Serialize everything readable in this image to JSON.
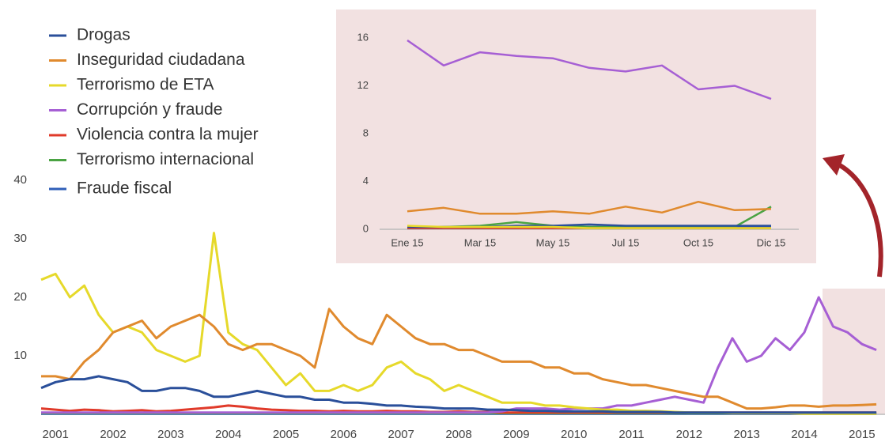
{
  "chart_data": [
    {
      "type": "line",
      "x": [
        2000.75,
        2001,
        2001.25,
        2001.5,
        2001.75,
        2002,
        2002.25,
        2002.5,
        2002.75,
        2003,
        2003.25,
        2003.5,
        2003.75,
        2004,
        2004.25,
        2004.5,
        2004.75,
        2005,
        2005.25,
        2005.5,
        2005.75,
        2006,
        2006.25,
        2006.5,
        2006.75,
        2007,
        2007.25,
        2007.5,
        2007.75,
        2008,
        2008.25,
        2008.5,
        2008.75,
        2009,
        2009.25,
        2009.5,
        2009.75,
        2010,
        2010.25,
        2010.5,
        2010.75,
        2011,
        2011.25,
        2011.5,
        2011.75,
        2012,
        2012.25,
        2012.5,
        2012.75,
        2013,
        2013.25,
        2013.5,
        2013.75,
        2014,
        2014.25,
        2014.5,
        2014.75,
        2015,
        2015.25
      ],
      "series": [
        {
          "name": "Drogas",
          "color": "#2a4f9a",
          "values": [
            4.5,
            5.5,
            6,
            6,
            6.5,
            6,
            5.5,
            4,
            4,
            4.5,
            4.5,
            4,
            3,
            3,
            3.5,
            4,
            3.5,
            3,
            3,
            2.5,
            2.5,
            2,
            2,
            1.8,
            1.5,
            1.5,
            1.3,
            1.2,
            1,
            1,
            1,
            0.8,
            0.8,
            0.7,
            0.6,
            0.6,
            0.5,
            0.5,
            0.5,
            0.5,
            0.4,
            0.4,
            0.4,
            0.4,
            0.3,
            0.3,
            0.3,
            0.3,
            0.3,
            0.3,
            0.3,
            0.3,
            0.3,
            0.3,
            0.3,
            0.3,
            0.3,
            0.3,
            0.3
          ]
        },
        {
          "name": "Inseguridad ciudadana",
          "color": "#e08a2e",
          "values": [
            6.5,
            6.5,
            6,
            9,
            11,
            14,
            15,
            16,
            13,
            15,
            16,
            17,
            15,
            12,
            11,
            12,
            12,
            11,
            10,
            8,
            18,
            15,
            13,
            12,
            17,
            15,
            13,
            12,
            12,
            11,
            11,
            10,
            9,
            9,
            9,
            8,
            8,
            7,
            7,
            6,
            5.5,
            5,
            5,
            4.5,
            4,
            3.5,
            3,
            3,
            2,
            1,
            1,
            1.2,
            1.5,
            1.5,
            1.3,
            1.5,
            1.5,
            1.6,
            1.7
          ]
        },
        {
          "name": "Terrorismo de ETA",
          "color": "#e6d92a",
          "values": [
            23,
            24,
            20,
            22,
            17,
            14,
            15,
            14,
            11,
            10,
            9,
            10,
            31,
            14,
            12,
            11,
            8,
            5,
            7,
            4,
            4,
            5,
            4,
            5,
            8,
            9,
            7,
            6,
            4,
            5,
            4,
            3,
            2,
            2,
            2,
            1.5,
            1.5,
            1.2,
            1,
            0.8,
            0.8,
            0.6,
            0.6,
            0.5,
            0.4,
            0.3,
            0.3,
            0.3,
            0.2,
            0.2,
            0.2,
            0.2,
            0.2,
            0.1,
            0.1,
            0.1,
            0.1,
            0.1,
            0.1
          ]
        },
        {
          "name": "Corrupción y fraude",
          "color": "#a65fd4",
          "values": [
            0.3,
            0.3,
            0.3,
            0.3,
            0.3,
            0.3,
            0.3,
            0.3,
            0.3,
            0.3,
            0.3,
            0.3,
            0.3,
            0.3,
            0.3,
            0.3,
            0.3,
            0.3,
            0.3,
            0.3,
            0.3,
            0.3,
            0.3,
            0.3,
            0.3,
            0.3,
            0.3,
            0.3,
            0.3,
            0.3,
            0.3,
            0.3,
            0.5,
            1,
            1,
            1,
            0.8,
            1,
            1,
            1,
            1.5,
            1.5,
            2,
            2.5,
            3,
            2.5,
            2,
            8,
            13,
            9,
            10,
            13,
            11,
            14,
            20,
            15,
            14,
            12,
            11
          ]
        },
        {
          "name": "Violencia contra la mujer",
          "color": "#e03a2a",
          "values": [
            1,
            0.8,
            0.6,
            0.8,
            0.7,
            0.5,
            0.6,
            0.7,
            0.5,
            0.6,
            0.8,
            1,
            1.2,
            1.5,
            1.3,
            1,
            0.8,
            0.7,
            0.6,
            0.6,
            0.5,
            0.6,
            0.5,
            0.5,
            0.6,
            0.5,
            0.5,
            0.4,
            0.4,
            0.5,
            0.4,
            0.4,
            0.3,
            0.3,
            0.3,
            0.3,
            0.3,
            0.3,
            0.3,
            0.3,
            0.3,
            0.3,
            0.3,
            0.3,
            0.3,
            0.3,
            0.3,
            0.3,
            0.3,
            0.3,
            0.3,
            0.3,
            0.3,
            0.3,
            0.3,
            0.3,
            0.3,
            0.3,
            0.3
          ]
        },
        {
          "name": "Terrorismo internacional",
          "color": "#4aa343",
          "values": [
            0.2,
            0.2,
            0.2,
            0.2,
            0.2,
            0.2,
            0.2,
            0.2,
            0.2,
            0.2,
            0.2,
            0.2,
            0.2,
            0.2,
            0.2,
            0.2,
            0.2,
            0.2,
            0.2,
            0.2,
            0.2,
            0.2,
            0.2,
            0.2,
            0.2,
            0.2,
            0.2,
            0.2,
            0.2,
            0.2,
            0.2,
            0.2,
            0.2,
            0.2,
            0.2,
            0.2,
            0.2,
            0.2,
            0.2,
            0.2,
            0.2,
            0.2,
            0.2,
            0.2,
            0.2,
            0.2,
            0.2,
            0.2,
            0.2,
            0.2,
            0.2,
            0.2,
            0.2,
            0.2,
            0.2,
            0.2,
            0.2,
            0.2,
            0.2
          ]
        },
        {
          "name": "Fraude fiscal",
          "color": "#2f5fb8",
          "values": [
            0.1,
            0.1,
            0.1,
            0.1,
            0.1,
            0.1,
            0.1,
            0.1,
            0.1,
            0.1,
            0.1,
            0.1,
            0.1,
            0.1,
            0.1,
            0.1,
            0.1,
            0.1,
            0.1,
            0.1,
            0.1,
            0.1,
            0.1,
            0.1,
            0.1,
            0.1,
            0.1,
            0.1,
            0.1,
            0.1,
            0.1,
            0.1,
            0.1,
            0.1,
            0.1,
            0.1,
            0.1,
            0.1,
            0.1,
            0.1,
            0.1,
            0.1,
            0.1,
            0.1,
            0.1,
            0.1,
            0.1,
            0.1,
            0.1,
            0.1,
            0.1,
            0.1,
            0.1,
            0.1,
            0.1,
            0.1,
            0.1,
            0.1,
            0.1
          ]
        }
      ],
      "xlim": [
        2000.75,
        2015.4
      ],
      "xticks": [
        2001,
        2002,
        2003,
        2004,
        2005,
        2006,
        2007,
        2008,
        2009,
        2010,
        2011,
        2012,
        2013,
        2014,
        2015
      ],
      "ylim": [
        0,
        40
      ],
      "yticks": [
        10,
        20,
        30,
        40
      ]
    },
    {
      "type": "line",
      "categories": [
        "Ene 15",
        null,
        "Mar 15",
        null,
        "May 15",
        null,
        "Jul 15",
        null,
        "Oct 15",
        null,
        "Dic 15"
      ],
      "series": [
        {
          "color": "#a65fd4",
          "values": [
            15.8,
            13.7,
            14.8,
            14.5,
            14.3,
            13.5,
            13.2,
            13.7,
            11.7,
            12,
            10.9
          ]
        },
        {
          "color": "#e08a2e",
          "values": [
            1.5,
            1.8,
            1.3,
            1.3,
            1.5,
            1.3,
            1.9,
            1.4,
            2.3,
            1.6,
            1.7
          ]
        },
        {
          "color": "#e6d92a",
          "values": [
            0.3,
            0.2,
            0.2,
            0.2,
            0.2,
            0.1,
            0.1,
            0.1,
            0.1,
            0.1,
            0.1
          ]
        },
        {
          "color": "#2a4f9a",
          "values": [
            0.2,
            0.2,
            0.2,
            0.3,
            0.3,
            0.4,
            0.3,
            0.3,
            0.3,
            0.3,
            0.3
          ]
        },
        {
          "color": "#e03a2a",
          "values": [
            0.1,
            0.1,
            0.1,
            0.1,
            0.1,
            0.1,
            0.1,
            0.1,
            0.1,
            0.1,
            0.1
          ]
        },
        {
          "color": "#4aa343",
          "values": [
            0.1,
            0.2,
            0.3,
            0.6,
            0.3,
            0.2,
            0.2,
            0.2,
            0.2,
            0.2,
            1.9
          ]
        },
        {
          "color": "#2f5fb8",
          "values": [
            0.1,
            0.1,
            0.1,
            0.1,
            0.2,
            0.2,
            0.2,
            0.2,
            0.2,
            0.2,
            0.2
          ]
        }
      ],
      "ylim": [
        0,
        16
      ],
      "yticks": [
        0,
        4,
        8,
        12,
        16
      ]
    }
  ]
}
